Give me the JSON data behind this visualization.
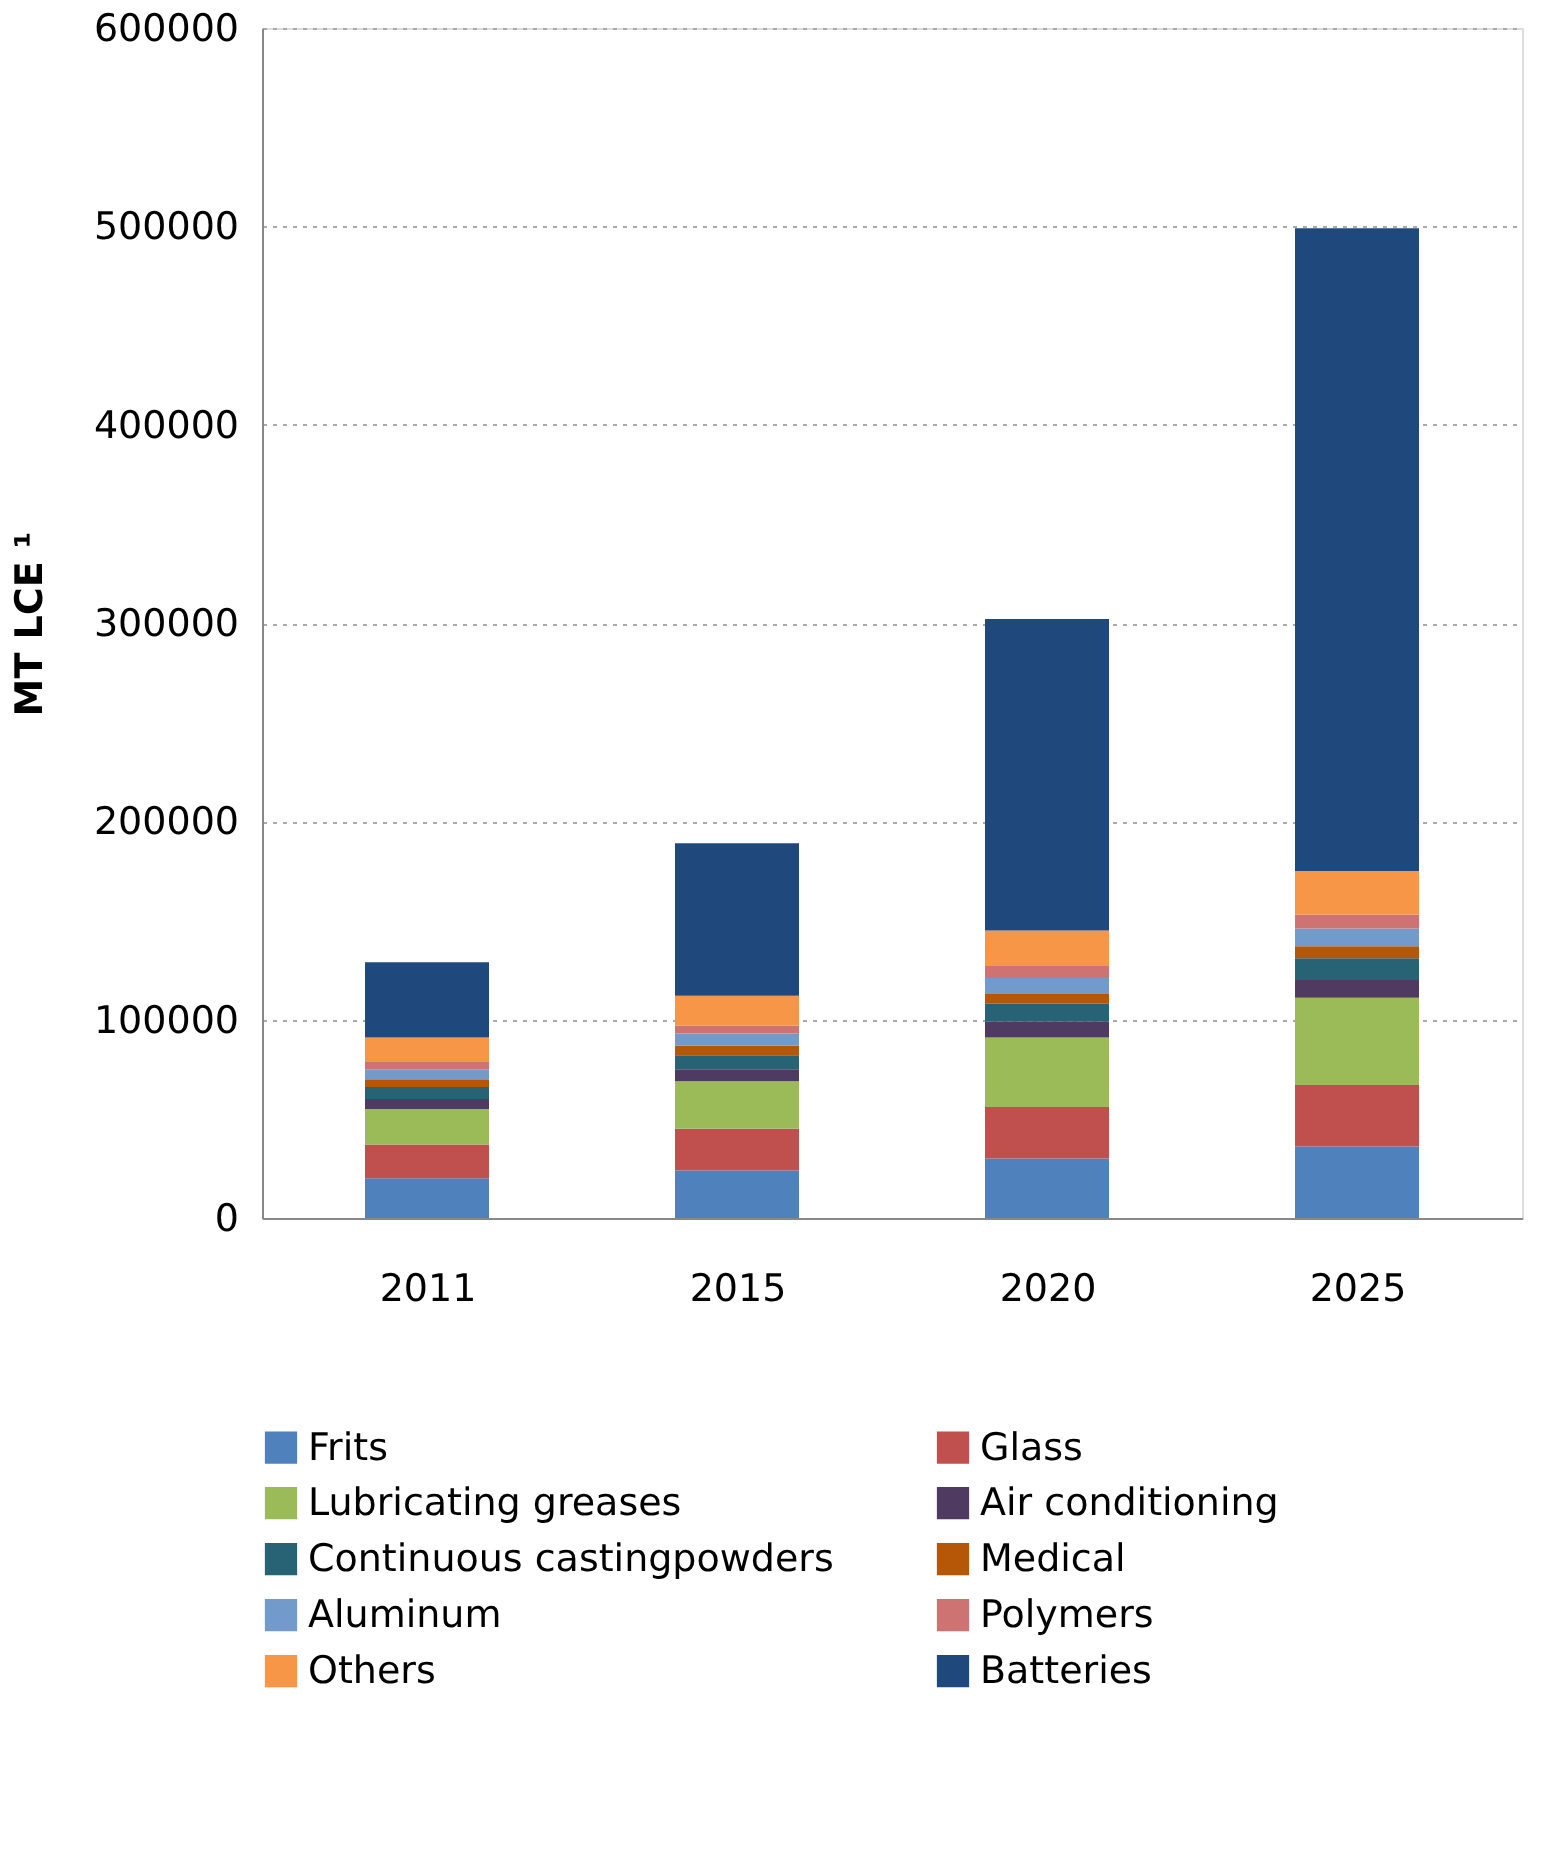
{
  "chart_data": {
    "type": "bar",
    "stacked": true,
    "ylabel": "MT LCE ¹",
    "categories": [
      "2011",
      "2015",
      "2020",
      "2025"
    ],
    "series": [
      {
        "name": "Frits",
        "color": "#4f81bd",
        "values": [
          20000,
          24000,
          30000,
          36000
        ]
      },
      {
        "name": "Glass",
        "color": "#c0504d",
        "values": [
          17000,
          21000,
          26000,
          31000
        ]
      },
      {
        "name": "Lubricating greases",
        "color": "#9bbb59",
        "values": [
          18000,
          24000,
          35000,
          44000
        ]
      },
      {
        "name": "Air conditioning",
        "color": "#4f3b62",
        "values": [
          5000,
          6000,
          8000,
          9000
        ]
      },
      {
        "name": "Continuous castingpowders",
        "color": "#276374",
        "values": [
          6000,
          7000,
          9000,
          11000
        ]
      },
      {
        "name": "Medical",
        "color": "#b65708",
        "values": [
          4000,
          5000,
          5000,
          6000
        ]
      },
      {
        "name": "Aluminum",
        "color": "#729aca",
        "values": [
          5000,
          6000,
          8000,
          9000
        ]
      },
      {
        "name": "Polymers",
        "color": "#cd7371",
        "values": [
          4000,
          4000,
          6000,
          7000
        ]
      },
      {
        "name": "Others",
        "color": "#f79646",
        "values": [
          12000,
          15000,
          18000,
          22000
        ]
      },
      {
        "name": "Batteries",
        "color": "#1f497d",
        "values": [
          38000,
          77000,
          157000,
          324000
        ]
      }
    ],
    "ylim": [
      0,
      600000
    ],
    "yticks": [
      0,
      100000,
      200000,
      300000,
      400000,
      500000,
      600000
    ],
    "grid": "y",
    "legend": "bottom"
  }
}
